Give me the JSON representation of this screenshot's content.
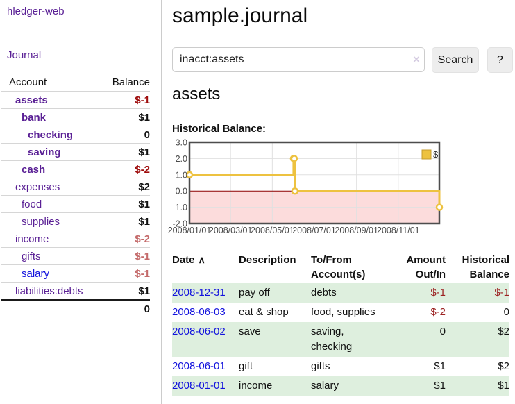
{
  "sidebar": {
    "brand": "hledger-web",
    "nav": {
      "journal": "Journal"
    },
    "accounts_table": {
      "col_account": "Account",
      "col_balance": "Balance",
      "rows": [
        {
          "name": "assets",
          "balance": "$-1"
        },
        {
          "name": "bank",
          "balance": "$1"
        },
        {
          "name": "checking",
          "balance": "0"
        },
        {
          "name": "saving",
          "balance": "$1"
        },
        {
          "name": "cash",
          "balance": "$-2"
        },
        {
          "name": "expenses",
          "balance": "$2"
        },
        {
          "name": "food",
          "balance": "$1"
        },
        {
          "name": "supplies",
          "balance": "$1"
        },
        {
          "name": "income",
          "balance": "$-2"
        },
        {
          "name": "gifts",
          "balance": "$-1"
        },
        {
          "name": "salary",
          "balance": "$-1"
        },
        {
          "name": "liabilities:debts",
          "balance": "$1"
        }
      ],
      "total": "0"
    }
  },
  "main": {
    "title": "sample.journal",
    "search": {
      "value": "inacct:assets",
      "clear_icon": "×",
      "search_label": "Search",
      "help_label": "?"
    },
    "account_heading": "assets",
    "section_label": "Historical Balance:"
  },
  "register": {
    "headers": {
      "date": "Date",
      "description": "Description",
      "accounts": "To/From Account(s)",
      "amount": "Amount Out/In",
      "balance": "Historical Balance"
    },
    "sort_icon": "∧",
    "rows": [
      {
        "date": "2008-12-31",
        "description": "pay off",
        "accounts": "debts",
        "amount": "$-1",
        "balance": "$-1"
      },
      {
        "date": "2008-06-03",
        "description": "eat & shop",
        "accounts": "food, supplies",
        "amount": "$-2",
        "balance": "0"
      },
      {
        "date": "2008-06-02",
        "description": "save",
        "accounts": "saving, checking",
        "amount": "0",
        "balance": "$2"
      },
      {
        "date": "2008-06-01",
        "description": "gift",
        "accounts": "gifts",
        "amount": "$1",
        "balance": "$2"
      },
      {
        "date": "2008-01-01",
        "description": "income",
        "accounts": "salary",
        "amount": "$1",
        "balance": "$1"
      }
    ]
  },
  "chart_data": {
    "type": "line",
    "title": "Historical Balance",
    "series": [
      {
        "name": "$",
        "color": "#edc240",
        "style": "step",
        "marker": "hollow-circle",
        "points": [
          [
            "2008-01-01",
            1
          ],
          [
            "2008-06-01",
            2
          ],
          [
            "2008-06-02",
            2
          ],
          [
            "2008-06-03",
            0
          ],
          [
            "2008-12-31",
            -1
          ]
        ]
      }
    ],
    "xrange": [
      "2008-01-01",
      "2008-12-31"
    ],
    "ylim": [
      -2,
      3
    ],
    "y_ticks": [
      "3.0",
      "2.0",
      "1.0",
      "0.0",
      "-1.0",
      "-2.0"
    ],
    "x_ticks": [
      "2008/01/01",
      "2008/03/01",
      "2008/05/01",
      "2008/07/01",
      "2008/09/01",
      "2008/11/01"
    ],
    "legend_position": "top-right",
    "grid": true,
    "colors": {
      "negative_fill": "#fcdcdc",
      "zero_line": "#8b0000",
      "grid": "#e0e0e0",
      "border": "#4d4d4d"
    }
  }
}
